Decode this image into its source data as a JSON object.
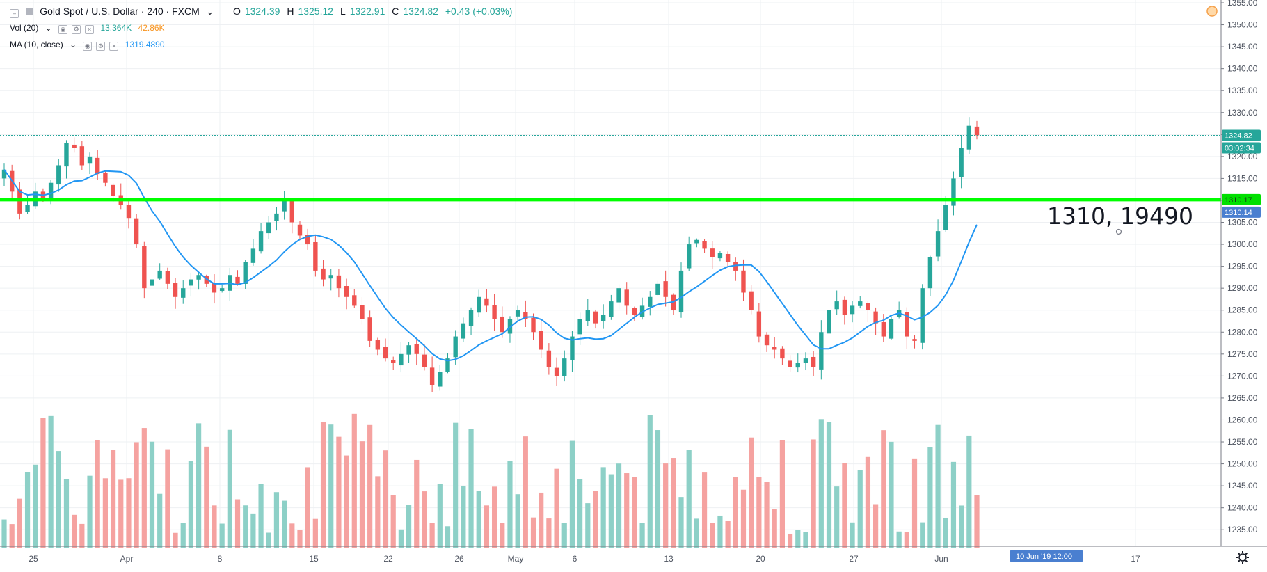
{
  "header": {
    "symbol_title": "Gold Spot / U.S. Dollar · 240 · FXCM",
    "ohlc": {
      "open": "1324.39",
      "high": "1325.12",
      "low": "1322.91",
      "close": "1324.82",
      "change": "+0.43 (+0.03%)"
    },
    "vol_label": "Vol (20)",
    "vol_value_1": "13.364K",
    "vol_value_2": "42.86K",
    "ma_label": "MA (10, close)",
    "ma_value": "1319.4890"
  },
  "annotation_text": "1310, 19490",
  "price_tags": {
    "last": "1324.82",
    "countdown": "03:02:34",
    "hline": "1310.17",
    "cursor": "1310.14"
  },
  "time_tag": "10 Jun '19   12:00",
  "colors": {
    "up": "#26a69a",
    "down": "#ef5350",
    "ma": "#2196f3",
    "hline": "#00ff00",
    "vol_up": "#8dd0c7",
    "vol_down": "#f5a2a0"
  },
  "chart_data": {
    "type": "candlestick",
    "symbol": "XAUUSD",
    "interval": "240",
    "price_axis": {
      "min": 1232.5,
      "max": 1355,
      "ticks": [
        1235,
        1240,
        1245,
        1250,
        1255,
        1260,
        1265,
        1270,
        1275,
        1280,
        1285,
        1290,
        1295,
        1300,
        1305,
        1310,
        1315,
        1320,
        1325,
        1330,
        1335,
        1340,
        1345,
        1350,
        1355
      ]
    },
    "x_ticks": [
      "25",
      "Apr",
      "8",
      "15",
      "22",
      "26",
      "May",
      "6",
      "13",
      "20",
      "27",
      "Jun",
      "17"
    ],
    "horizontal_line": 1310.17,
    "close_path": [
      1317,
      1312,
      1307,
      1309,
      1312,
      1310,
      1314,
      1318,
      1323,
      1322,
      1318,
      1320,
      1316,
      1314,
      1311,
      1309,
      1306,
      1300,
      1290,
      1292,
      1294,
      1291,
      1288,
      1290,
      1292,
      1293,
      1291,
      1289,
      1290,
      1293,
      1291,
      1296,
      1299,
      1303,
      1305,
      1307,
      1310,
      1305,
      1302,
      1300,
      1294,
      1292,
      1293,
      1290,
      1288,
      1286,
      1283,
      1278,
      1276,
      1274,
      1273,
      1275,
      1277,
      1275,
      1272,
      1268,
      1271,
      1274,
      1279,
      1282,
      1285,
      1288,
      1286,
      1283,
      1280,
      1283,
      1285,
      1283,
      1280,
      1276,
      1272,
      1270,
      1274,
      1279,
      1283,
      1285,
      1282,
      1284,
      1287,
      1290,
      1286,
      1284,
      1286,
      1288,
      1291,
      1288,
      1285,
      1294,
      1300,
      1301,
      1299,
      1297,
      1298,
      1296,
      1294,
      1289,
      1285,
      1279,
      1277,
      1276,
      1274,
      1272,
      1273,
      1274,
      1272,
      1280,
      1285,
      1287,
      1284,
      1286,
      1287,
      1285,
      1282,
      1279,
      1283,
      1285,
      1279,
      1278,
      1290,
      1297,
      1303,
      1309,
      1315,
      1322,
      1327,
      1324.82
    ],
    "ma10": 1319.489,
    "volume_axis": "relative",
    "volume_max_k": 42.86,
    "last_volume_k": 13.364
  }
}
